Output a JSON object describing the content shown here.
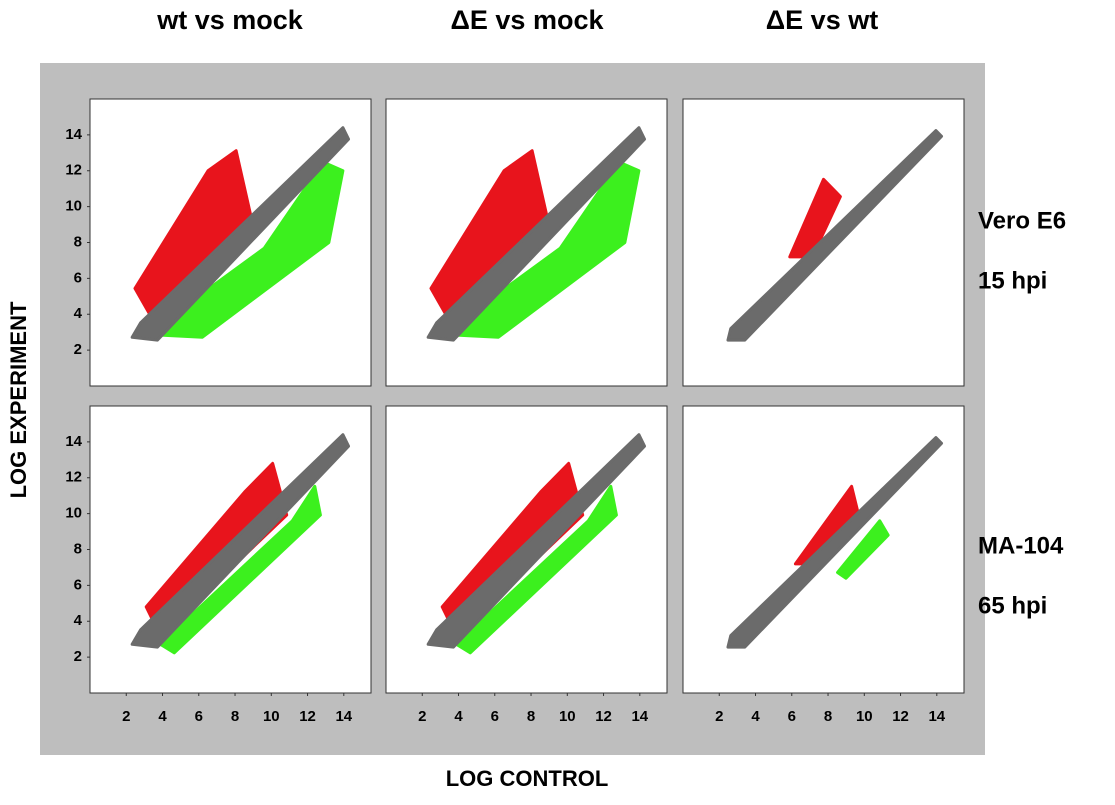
{
  "x_label": "LOG CONTROL",
  "y_label": "LOG EXPERIMENT",
  "columns": [
    "wt vs mock",
    "ΔE vs mock",
    "ΔE vs wt"
  ],
  "rows": [
    [
      "Vero E6",
      "15 hpi"
    ],
    [
      "MA-104",
      "65 hpi"
    ]
  ],
  "colors": [
    "#e8141c",
    "#3cf01e",
    "#6b6b6b"
  ],
  "chart_data": [
    {
      "type": "scatter",
      "xlim": [
        0,
        15.5
      ],
      "ylim": [
        0,
        16
      ],
      "yticks": [
        2,
        4,
        6,
        8,
        10,
        12,
        14
      ]
    },
    {
      "type": "scatter",
      "xlim": [
        0,
        15.5
      ],
      "ylim": [
        0,
        16
      ]
    },
    {
      "type": "scatter",
      "xlim": [
        0,
        15.5
      ],
      "ylim": [
        0,
        16
      ]
    },
    {
      "type": "scatter",
      "xlim": [
        0,
        15.5
      ],
      "ylim": [
        0,
        16
      ],
      "yticks": [
        2,
        4,
        6,
        8,
        10,
        12,
        14
      ],
      "xticks": [
        2,
        4,
        6,
        8,
        10,
        12,
        14
      ]
    },
    {
      "type": "scatter",
      "xlim": [
        0,
        15.5
      ],
      "ylim": [
        0,
        16
      ],
      "xticks": [
        2,
        4,
        6,
        8,
        10,
        12,
        14
      ]
    },
    {
      "type": "scatter",
      "xlim": [
        0,
        15.5
      ],
      "ylim": [
        0,
        16
      ],
      "xticks": [
        2,
        4,
        6,
        8,
        10,
        12,
        14
      ]
    }
  ]
}
